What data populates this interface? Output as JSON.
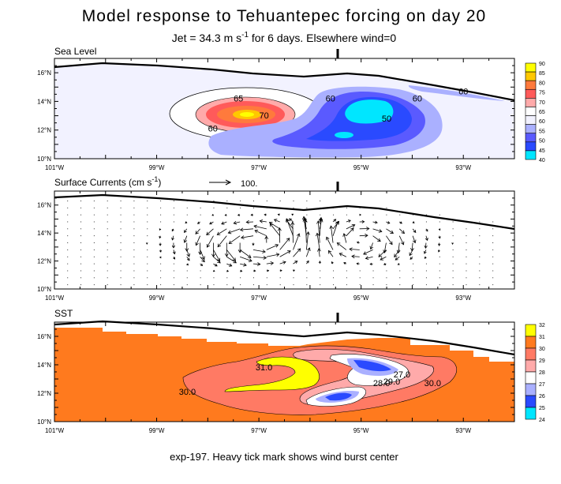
{
  "title": "Model response to Tehuantepec forcing on day 20",
  "subtitle_main": "Jet = 34.3 m s",
  "subtitle_exp": "-1",
  "subtitle_rest": " for 6 days. Elsewhere wind=0",
  "footer": "exp-197. Heavy tick mark shows wind burst center",
  "chart_data": [
    {
      "type": "heatmap",
      "title": "Sea Level",
      "x_ticks": [
        "101°W",
        "99°W",
        "97°W",
        "95°W",
        "93°W"
      ],
      "y_ticks": [
        "10°N",
        "12°N",
        "14°N",
        "16°N"
      ],
      "xlim": [
        -101,
        -92
      ],
      "ylim": [
        10,
        17
      ],
      "wind_burst_center_lon": -95.2,
      "colorbar_levels": [
        "90",
        "85",
        "80",
        "75",
        "70",
        "65",
        "60",
        "55",
        "50",
        "45",
        "40"
      ],
      "colorbar_colors": [
        "#ffff00",
        "#ffc800",
        "#ff7a3c",
        "#ff5a5a",
        "#ffaaaa",
        "#ffffff",
        "#f2f2ff",
        "#aab0ff",
        "#5a5aff",
        "#2a4aff",
        "#00e6ff"
      ],
      "contour_labels": [
        {
          "text": "65",
          "lon": -97.4,
          "lat": 14.0
        },
        {
          "text": "70",
          "lon": -96.9,
          "lat": 12.8
        },
        {
          "text": "60",
          "lon": -97.9,
          "lat": 11.9
        },
        {
          "text": "60",
          "lon": -95.6,
          "lat": 14.0
        },
        {
          "text": "50",
          "lon": -94.5,
          "lat": 12.6
        },
        {
          "text": "60",
          "lon": -93.9,
          "lat": 14.0
        },
        {
          "text": "60",
          "lon": -93.0,
          "lat": 14.5
        }
      ]
    },
    {
      "type": "scatter",
      "title": "Surface Currents (cm s",
      "title_exp": "-1",
      "title_end": ")",
      "reference_vector_label": "100.",
      "x_ticks": [
        "101°W",
        "99°W",
        "97°W",
        "95°W",
        "93°W"
      ],
      "y_ticks": [
        "10°N",
        "12°N",
        "14°N",
        "16°N"
      ],
      "xlim": [
        -101,
        -92
      ],
      "ylim": [
        10,
        17
      ],
      "wind_burst_center_lon": -95.2
    },
    {
      "type": "heatmap",
      "title": "SST",
      "x_ticks": [
        "101°W",
        "99°W",
        "97°W",
        "95°W",
        "93°W"
      ],
      "y_ticks": [
        "10°N",
        "12°N",
        "14°N",
        "16°N"
      ],
      "xlim": [
        -101,
        -92
      ],
      "ylim": [
        10,
        17
      ],
      "wind_burst_center_lon": -95.2,
      "colorbar_levels": [
        "32",
        "31",
        "30",
        "29",
        "28",
        "27",
        "26",
        "25",
        "24"
      ],
      "colorbar_colors": [
        "#ffff00",
        "#ff7a1e",
        "#ff7a64",
        "#ffaaaa",
        "#ffffff",
        "#aab0ff",
        "#2a4aff",
        "#00e6ff"
      ],
      "contour_labels": [
        {
          "text": "31.0",
          "lon": -96.9,
          "lat": 13.6
        },
        {
          "text": "30.0",
          "lon": -98.4,
          "lat": 11.9
        },
        {
          "text": "27.0",
          "lon": -94.2,
          "lat": 13.1
        },
        {
          "text": "28.0",
          "lon": -94.6,
          "lat": 12.5
        },
        {
          "text": "30.0",
          "lon": -93.6,
          "lat": 12.5
        },
        {
          "text": "29.0",
          "lon": -94.4,
          "lat": 12.6
        }
      ]
    }
  ]
}
